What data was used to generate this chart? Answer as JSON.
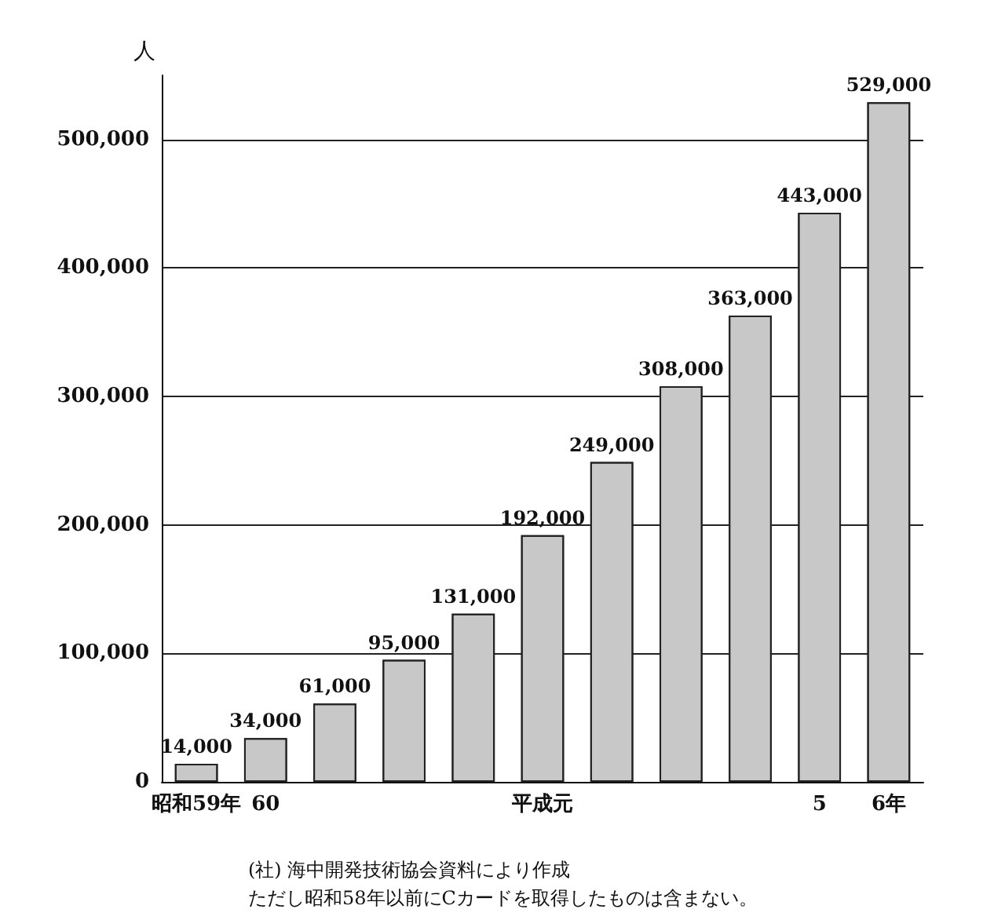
{
  "chart_data": {
    "type": "bar",
    "ylabel": "人",
    "categories": [
      "昭和59年",
      "60",
      null,
      null,
      null,
      "平成元",
      null,
      null,
      null,
      "5",
      "6年"
    ],
    "values": [
      14000,
      34000,
      61000,
      95000,
      131000,
      192000,
      249000,
      308000,
      363000,
      443000,
      529000
    ],
    "value_labels": [
      "14,000",
      "34,000",
      "61,000",
      "95,000",
      "131,000",
      "192,000",
      "249,000",
      "308,000",
      "363,000",
      "443,000",
      "529,000"
    ],
    "color": "#c8c8c8",
    "ylim": [
      0,
      550000
    ],
    "yticks": [
      0,
      {
        "value": 100000,
        "label": "100,000"
      },
      {
        "value": 200000,
        "label": "200,000"
      },
      {
        "value": 300000,
        "label": "300,000"
      },
      {
        "value": 400000,
        "label": "400,000"
      },
      {
        "value": 500000,
        "label": "500,000"
      }
    ],
    "grid": "y",
    "annotations": [
      "(社) 海中開発技術協会資料により作成",
      "ただし昭和58年以前にCカードを取得したものは含まない。"
    ]
  }
}
